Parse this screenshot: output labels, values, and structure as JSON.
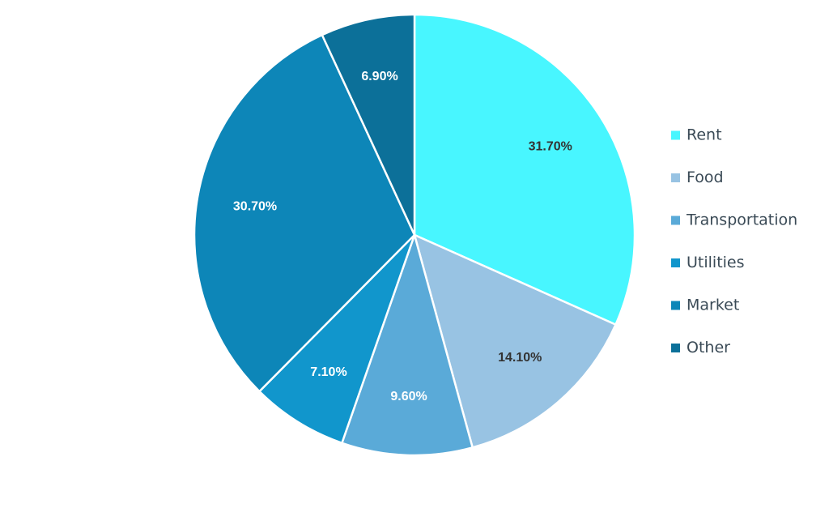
{
  "chart_data": {
    "type": "pie",
    "categories": [
      "Rent",
      "Food",
      "Transportation",
      "Utilities",
      "Market",
      "Other"
    ],
    "values": [
      31.7,
      14.1,
      9.6,
      7.1,
      30.7,
      6.9
    ],
    "value_labels": [
      "31.70%",
      "14.10%",
      "9.60%",
      "7.10%",
      "30.70%",
      "6.90%"
    ],
    "colors": [
      "#48f6ff",
      "#98c3e3",
      "#5aaad8",
      "#1196cc",
      "#0d86b8",
      "#0c7099"
    ],
    "label_colors": [
      "#333333",
      "#333333",
      "#ffffff",
      "#ffffff",
      "#ffffff",
      "#ffffff"
    ],
    "legend_placement": "right",
    "start_angle_deg": 0,
    "direction": "clockwise"
  }
}
